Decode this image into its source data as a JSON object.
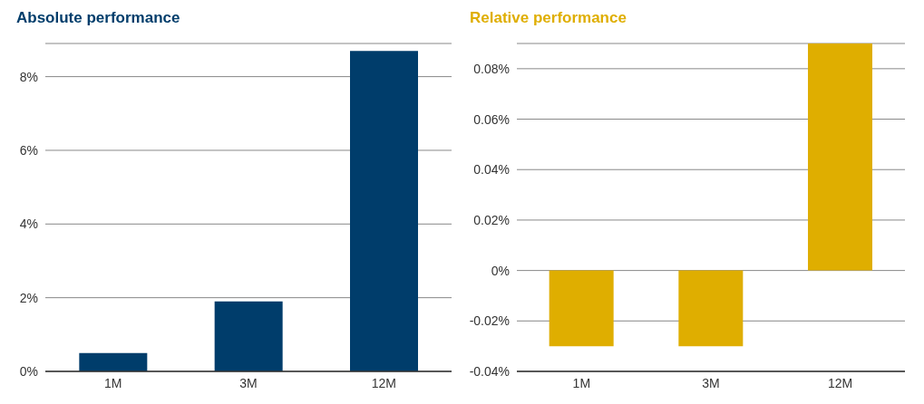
{
  "chart_data": [
    {
      "type": "bar",
      "title": "Absolute performance",
      "categories": [
        "1M",
        "3M",
        "12M"
      ],
      "series": [
        {
          "color": "#003d6b",
          "values": [
            0.5,
            1.9,
            8.7
          ]
        }
      ],
      "ylim": [
        0,
        8.9
      ],
      "yticks": [
        {
          "value": 0,
          "label": "0%"
        },
        {
          "value": 2,
          "label": "2%"
        },
        {
          "value": 4,
          "label": "4%"
        },
        {
          "value": 6,
          "label": "6%"
        },
        {
          "value": 8,
          "label": "8%"
        }
      ],
      "grid": "y",
      "legend": false
    },
    {
      "type": "bar",
      "title": "Relative performance",
      "categories": [
        "1M",
        "3M",
        "12M"
      ],
      "series": [
        {
          "color": "#dfae00",
          "values": [
            -0.03,
            -0.03,
            0.09
          ]
        }
      ],
      "ylim": [
        -0.04,
        0.09
      ],
      "yticks": [
        {
          "value": -0.04,
          "label": "-0.04%"
        },
        {
          "value": -0.02,
          "label": "-0.02%"
        },
        {
          "value": 0,
          "label": "0%"
        },
        {
          "value": 0.02,
          "label": "0.02%"
        },
        {
          "value": 0.04,
          "label": "0.04%"
        },
        {
          "value": 0.06,
          "label": "0.06%"
        },
        {
          "value": 0.08,
          "label": "0.08%"
        }
      ],
      "grid": "y",
      "legend": false
    }
  ]
}
